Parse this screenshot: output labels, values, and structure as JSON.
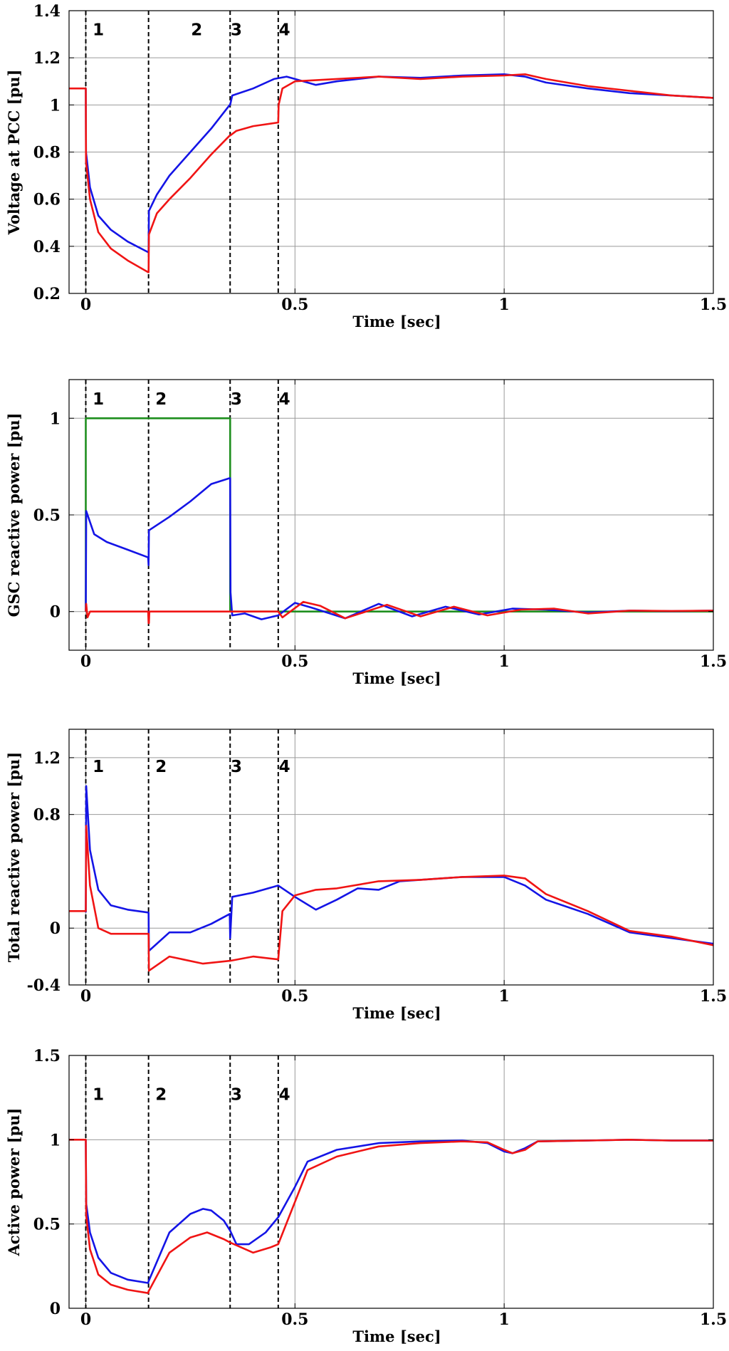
{
  "colors": {
    "blue": "#1414e6",
    "red": "#f01414",
    "green": "#1f8f1f"
  },
  "chart_data": [
    {
      "type": "line",
      "title": "",
      "xlabel": "Time [sec]",
      "ylabel": "Voltage at PCC [pu]",
      "xlim": [
        -0.04,
        1.5
      ],
      "ylim": [
        0.2,
        1.4
      ],
      "xticks": [
        0,
        0.5,
        1,
        1.5
      ],
      "xtick_labels": [
        "0",
        "0.5",
        "1",
        "1.5"
      ],
      "yticks": [
        0.2,
        0.4,
        0.6,
        0.8,
        1,
        1.2,
        1.4
      ],
      "ytick_labels": [
        "0.2",
        "0.4",
        "0.6",
        "0.8",
        "1",
        "1.2",
        "1.4"
      ],
      "grid": true,
      "region_markers": [
        0,
        0.15,
        0.345,
        0.46
      ],
      "region_labels": [
        {
          "text": "1",
          "x": 0.03,
          "y": 1.32
        },
        {
          "text": "2",
          "x": 0.265,
          "y": 1.32
        },
        {
          "text": "3",
          "x": 0.36,
          "y": 1.32
        },
        {
          "text": "4",
          "x": 0.475,
          "y": 1.32
        }
      ],
      "series": [
        {
          "name": "blue",
          "color": "blue",
          "x": [
            0,
            0.0005,
            0.01,
            0.03,
            0.06,
            0.1,
            0.149,
            0.15,
            0.151,
            0.17,
            0.2,
            0.25,
            0.3,
            0.344,
            0.345,
            0.35,
            0.4,
            0.45,
            0.48,
            0.5,
            0.55,
            0.6,
            0.7,
            0.8,
            0.9,
            1.0,
            1.05,
            1.1,
            1.2,
            1.3,
            1.4,
            1.5
          ],
          "values": [
            1.07,
            0.8,
            0.65,
            0.53,
            0.47,
            0.42,
            0.375,
            0.375,
            0.55,
            0.62,
            0.7,
            0.8,
            0.9,
            1.0,
            1.0,
            1.04,
            1.07,
            1.11,
            1.12,
            1.11,
            1.085,
            1.1,
            1.12,
            1.115,
            1.125,
            1.13,
            1.12,
            1.095,
            1.07,
            1.05,
            1.04,
            1.03
          ]
        },
        {
          "name": "red",
          "color": "red",
          "x": [
            -0.04,
            0,
            0.0005,
            0.01,
            0.03,
            0.06,
            0.1,
            0.149,
            0.15,
            0.151,
            0.17,
            0.2,
            0.25,
            0.3,
            0.344,
            0.345,
            0.36,
            0.4,
            0.459,
            0.46,
            0.461,
            0.47,
            0.5,
            0.55,
            0.6,
            0.7,
            0.8,
            0.9,
            1.0,
            1.05,
            1.1,
            1.2,
            1.3,
            1.4,
            1.5
          ],
          "values": [
            1.07,
            1.07,
            0.76,
            0.6,
            0.46,
            0.39,
            0.34,
            0.29,
            0.29,
            0.45,
            0.54,
            0.6,
            0.69,
            0.79,
            0.87,
            0.87,
            0.89,
            0.91,
            0.925,
            0.925,
            1.0,
            1.07,
            1.1,
            1.105,
            1.11,
            1.12,
            1.11,
            1.12,
            1.125,
            1.13,
            1.11,
            1.08,
            1.06,
            1.04,
            1.03
          ]
        }
      ]
    },
    {
      "type": "line",
      "title": "",
      "xlabel": "Time [sec]",
      "ylabel": "GSC reactive power [pu]",
      "xlim": [
        -0.04,
        1.5
      ],
      "ylim": [
        -0.2,
        1.2
      ],
      "xticks": [
        0,
        0.5,
        1,
        1.5
      ],
      "xtick_labels": [
        "0",
        "0.5",
        "1",
        "1.5"
      ],
      "yticks": [
        0,
        0.5,
        1
      ],
      "ytick_labels": [
        "0",
        "0.5",
        "1"
      ],
      "grid": true,
      "region_markers": [
        0,
        0.15,
        0.345,
        0.46
      ],
      "region_labels": [
        {
          "text": "1",
          "x": 0.03,
          "y": 1.1
        },
        {
          "text": "2",
          "x": 0.18,
          "y": 1.1
        },
        {
          "text": "3",
          "x": 0.36,
          "y": 1.1
        },
        {
          "text": "4",
          "x": 0.475,
          "y": 1.1
        }
      ],
      "series": [
        {
          "name": "green",
          "color": "green",
          "x": [
            0,
            0,
            0.345,
            0.345,
            1.5
          ],
          "values": [
            0,
            1,
            1,
            0,
            0
          ]
        },
        {
          "name": "blue",
          "color": "blue",
          "x": [
            0,
            0.001,
            0.02,
            0.05,
            0.1,
            0.149,
            0.15,
            0.151,
            0.2,
            0.25,
            0.3,
            0.344,
            0.345,
            0.346,
            0.35,
            0.38,
            0.42,
            0.46,
            0.5,
            0.54,
            0.62,
            0.7,
            0.78,
            0.86,
            0.94,
            1.02,
            1.1,
            1.2,
            1.3,
            1.4,
            1.5
          ],
          "values": [
            0,
            0.52,
            0.4,
            0.36,
            0.32,
            0.28,
            0.24,
            0.42,
            0.49,
            0.57,
            0.66,
            0.69,
            0.69,
            0.1,
            -0.02,
            -0.01,
            -0.04,
            -0.02,
            0.045,
            0.02,
            -0.035,
            0.04,
            -0.025,
            0.025,
            -0.015,
            0.015,
            0.01,
            -0.005,
            0.005,
            0.002,
            0.005
          ]
        },
        {
          "name": "red",
          "color": "red",
          "x": [
            0,
            0.001,
            0.004,
            0.01,
            0.149,
            0.15,
            0.151,
            0.152,
            0.34,
            0.46,
            0.47,
            0.52,
            0.56,
            0.62,
            0.72,
            0.8,
            0.88,
            0.96,
            1.04,
            1.12,
            1.2,
            1.3,
            1.4,
            1.5
          ],
          "values": [
            0,
            0.04,
            -0.03,
            0,
            0,
            -0.06,
            -0.06,
            0,
            0,
            0,
            -0.03,
            0.05,
            0.03,
            -0.035,
            0.035,
            -0.025,
            0.025,
            -0.02,
            0.01,
            0.015,
            -0.01,
            0.005,
            0.003,
            0.005
          ]
        }
      ]
    },
    {
      "type": "line",
      "title": "",
      "xlabel": "Time [sec]",
      "ylabel": "Total reactive power [pu]",
      "xlim": [
        -0.04,
        1.5
      ],
      "ylim": [
        -0.4,
        1.4
      ],
      "xticks": [
        0,
        0.5,
        1,
        1.5
      ],
      "xtick_labels": [
        "0",
        "0.5",
        "1",
        "1.5"
      ],
      "yticks": [
        -0.4,
        0,
        0.8,
        1.2
      ],
      "ytick_labels": [
        "-0.4",
        "0",
        "0.8",
        "1.2"
      ],
      "grid": true,
      "region_markers": [
        0,
        0.15,
        0.345,
        0.46
      ],
      "region_labels": [
        {
          "text": "1",
          "x": 0.03,
          "y": 1.14
        },
        {
          "text": "2",
          "x": 0.18,
          "y": 1.14
        },
        {
          "text": "3",
          "x": 0.36,
          "y": 1.14
        },
        {
          "text": "4",
          "x": 0.475,
          "y": 1.14
        }
      ],
      "series": [
        {
          "name": "blue",
          "color": "blue",
          "x": [
            0,
            0.001,
            0.01,
            0.03,
            0.06,
            0.1,
            0.149,
            0.15,
            0.151,
            0.2,
            0.25,
            0.3,
            0.344,
            0.345,
            0.35,
            0.4,
            0.46,
            0.5,
            0.55,
            0.6,
            0.65,
            0.7,
            0.75,
            0.8,
            0.9,
            1.0,
            1.05,
            1.1,
            1.2,
            1.3,
            1.4,
            1.5
          ],
          "values": [
            0.11,
            1.0,
            0.55,
            0.27,
            0.16,
            0.13,
            0.11,
            0.11,
            -0.16,
            -0.03,
            -0.03,
            0.03,
            0.1,
            -0.07,
            0.22,
            0.25,
            0.3,
            0.22,
            0.13,
            0.2,
            0.28,
            0.27,
            0.33,
            0.34,
            0.36,
            0.36,
            0.3,
            0.2,
            0.1,
            -0.03,
            -0.07,
            -0.11
          ]
        },
        {
          "name": "red",
          "color": "red",
          "x": [
            -0.04,
            0,
            0.001,
            0.01,
            0.03,
            0.06,
            0.1,
            0.149,
            0.15,
            0.151,
            0.2,
            0.28,
            0.345,
            0.4,
            0.459,
            0.46,
            0.47,
            0.5,
            0.55,
            0.6,
            0.7,
            0.8,
            0.9,
            1.0,
            1.05,
            1.1,
            1.2,
            1.3,
            1.4,
            1.5
          ],
          "values": [
            0.12,
            0.12,
            0.72,
            0.3,
            0.0,
            -0.04,
            -0.04,
            -0.04,
            -0.04,
            -0.3,
            -0.2,
            -0.25,
            -0.23,
            -0.2,
            -0.22,
            -0.22,
            0.12,
            0.23,
            0.27,
            0.28,
            0.33,
            0.34,
            0.36,
            0.37,
            0.35,
            0.24,
            0.12,
            -0.02,
            -0.06,
            -0.12
          ]
        }
      ]
    },
    {
      "type": "line",
      "title": "",
      "xlabel": "Time [sec]",
      "ylabel": "Active power [pu]",
      "xlim": [
        -0.04,
        1.5
      ],
      "ylim": [
        0,
        1.5
      ],
      "xticks": [
        0,
        0.5,
        1,
        1.5
      ],
      "xtick_labels": [
        "0",
        "0.5",
        "1",
        "1.5"
      ],
      "yticks": [
        0,
        0.5,
        1,
        1.5
      ],
      "ytick_labels": [
        "0",
        "0.5",
        "1",
        "1.5"
      ],
      "grid": true,
      "region_markers": [
        0,
        0.15,
        0.345,
        0.46
      ],
      "region_labels": [
        {
          "text": "1",
          "x": 0.03,
          "y": 1.27
        },
        {
          "text": "2",
          "x": 0.18,
          "y": 1.27
        },
        {
          "text": "3",
          "x": 0.36,
          "y": 1.27
        },
        {
          "text": "4",
          "x": 0.475,
          "y": 1.27
        }
      ],
      "series": [
        {
          "name": "blue",
          "color": "blue",
          "x": [
            0,
            0.001,
            0.01,
            0.03,
            0.06,
            0.1,
            0.149,
            0.15,
            0.2,
            0.25,
            0.28,
            0.3,
            0.33,
            0.345,
            0.36,
            0.39,
            0.43,
            0.46,
            0.5,
            0.53,
            0.6,
            0.7,
            0.8,
            0.9,
            0.96,
            1.0,
            1.02,
            1.05,
            1.08,
            1.2,
            1.3,
            1.4,
            1.5
          ],
          "values": [
            1.0,
            0.62,
            0.45,
            0.3,
            0.21,
            0.17,
            0.15,
            0.16,
            0.45,
            0.56,
            0.59,
            0.58,
            0.52,
            0.46,
            0.38,
            0.38,
            0.45,
            0.54,
            0.72,
            0.87,
            0.94,
            0.98,
            0.99,
            0.995,
            0.98,
            0.93,
            0.92,
            0.95,
            0.99,
            0.995,
            1.0,
            0.995,
            0.995
          ]
        },
        {
          "name": "red",
          "color": "red",
          "x": [
            -0.04,
            0,
            0.001,
            0.01,
            0.03,
            0.06,
            0.1,
            0.149,
            0.15,
            0.2,
            0.25,
            0.29,
            0.33,
            0.345,
            0.4,
            0.44,
            0.46,
            0.53,
            0.6,
            0.7,
            0.8,
            0.9,
            0.96,
            1.0,
            1.02,
            1.05,
            1.08,
            1.2,
            1.3,
            1.4,
            1.5
          ],
          "values": [
            1.0,
            1.0,
            0.55,
            0.35,
            0.2,
            0.14,
            0.11,
            0.09,
            0.1,
            0.33,
            0.42,
            0.45,
            0.41,
            0.39,
            0.33,
            0.36,
            0.38,
            0.82,
            0.9,
            0.96,
            0.98,
            0.99,
            0.985,
            0.94,
            0.92,
            0.94,
            0.99,
            0.995,
            1.0,
            0.995,
            0.995
          ]
        }
      ]
    }
  ]
}
